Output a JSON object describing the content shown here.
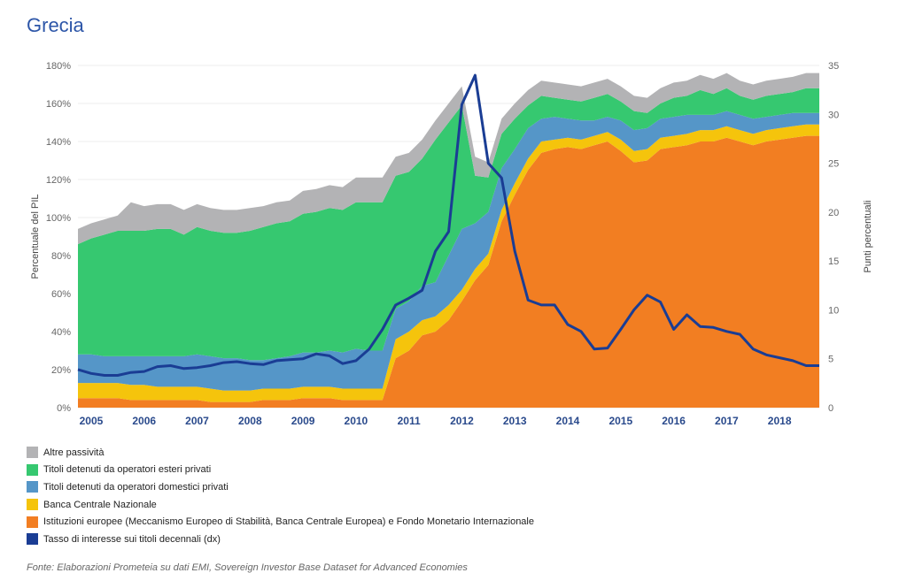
{
  "page": {
    "title": "Grecia",
    "footer": "Fonte: Elaborazioni Prometeia su dati EMI, Sovereign Investor Base Dataset for Advanced Economies"
  },
  "chart_data": {
    "type": "area",
    "title": "Grecia",
    "ylabel_left": "Percentuale del PIL",
    "ylabel_right": "Punti percentuali",
    "ylim_left": [
      0,
      180
    ],
    "ylim_right": [
      0,
      35
    ],
    "yticks_left": [
      "0%",
      "20%",
      "40%",
      "60%",
      "80%",
      "100%",
      "120%",
      "140%",
      "160%",
      "180%"
    ],
    "yticks_right": [
      "0",
      "5",
      "10",
      "15",
      "20",
      "25",
      "30",
      "35"
    ],
    "x_ticks": [
      "2005",
      "2006",
      "2007",
      "2008",
      "2009",
      "2010",
      "2011",
      "2012",
      "2013",
      "2014",
      "2015",
      "2016",
      "2017",
      "2018"
    ],
    "xlim": [
      2004.75,
      2018.75
    ],
    "stack_order": [
      "Istituzioni europee (Meccanismo Europeo di Stabilità, Banca Centrale Europea) e Fondo Monetario Internazionale",
      "Banca Centrale Nazionale",
      "Titoli detenuti da operatori domestici privati",
      "Titoli detenuti da operatori esteri privati",
      "Altre passività"
    ],
    "x": [
      2004.75,
      2005,
      2005.25,
      2005.5,
      2005.75,
      2006,
      2006.25,
      2006.5,
      2006.75,
      2007,
      2007.25,
      2007.5,
      2007.75,
      2008,
      2008.25,
      2008.5,
      2008.75,
      2009,
      2009.25,
      2009.5,
      2009.75,
      2010,
      2010.25,
      2010.5,
      2010.75,
      2011,
      2011.25,
      2011.5,
      2011.75,
      2012,
      2012.25,
      2012.5,
      2012.75,
      2013,
      2013.25,
      2013.5,
      2013.75,
      2014,
      2014.25,
      2014.5,
      2014.75,
      2015,
      2015.25,
      2015.5,
      2015.75,
      2016,
      2016.25,
      2016.5,
      2016.75,
      2017,
      2017.25,
      2017.5,
      2017.75,
      2018,
      2018.25,
      2018.5,
      2018.75
    ],
    "series": [
      {
        "name": "Altre passività",
        "color": "#b3b3b5",
        "values": [
          8,
          8,
          8,
          8,
          15,
          13,
          13,
          13,
          13,
          12,
          12,
          12,
          12,
          12,
          11,
          11,
          11,
          12,
          12,
          12,
          12,
          13,
          13,
          13,
          10,
          10,
          10,
          10,
          10,
          10,
          10,
          8,
          8,
          8,
          8,
          8,
          8,
          8,
          8,
          8,
          8,
          8,
          8,
          8,
          8,
          8,
          8,
          8,
          8,
          8,
          8,
          8,
          8,
          8,
          8,
          8,
          8
        ]
      },
      {
        "name": "Titoli detenuti da operatori esteri privati",
        "color": "#36c870",
        "values": [
          58,
          61,
          64,
          66,
          66,
          66,
          67,
          67,
          64,
          67,
          66,
          66,
          66,
          68,
          70,
          71,
          71,
          73,
          74,
          75,
          75,
          77,
          78,
          78,
          70,
          68,
          67,
          75,
          70,
          65,
          25,
          18,
          18,
          16,
          12,
          12,
          10,
          10,
          10,
          12,
          12,
          10,
          10,
          8,
          8,
          10,
          10,
          13,
          11,
          12,
          10,
          10,
          11,
          11,
          11,
          13,
          13
        ]
      },
      {
        "name": "Titoli detenuti da operatori domestici privati",
        "color": "#5596c8",
        "values": [
          15,
          15,
          14,
          14,
          15,
          15,
          16,
          16,
          16,
          17,
          17,
          17,
          17,
          16,
          15,
          16,
          17,
          18,
          18,
          19,
          19,
          21,
          20,
          20,
          16,
          16,
          18,
          18,
          26,
          32,
          24,
          22,
          22,
          18,
          16,
          12,
          12,
          10,
          10,
          8,
          8,
          10,
          11,
          11,
          10,
          10,
          10,
          8,
          8,
          8,
          8,
          8,
          7,
          7,
          7,
          6,
          6
        ]
      },
      {
        "name": "Banca Centrale Nazionale",
        "color": "#f5c40c",
        "values": [
          8,
          8,
          8,
          8,
          8,
          8,
          7,
          7,
          7,
          7,
          7,
          6,
          6,
          6,
          6,
          6,
          6,
          6,
          6,
          6,
          6,
          6,
          6,
          6,
          10,
          10,
          8,
          8,
          8,
          6,
          6,
          6,
          6,
          6,
          6,
          6,
          5,
          5,
          5,
          5,
          5,
          6,
          6,
          6,
          6,
          6,
          6,
          6,
          6,
          6,
          6,
          6,
          6,
          6,
          6,
          6,
          6
        ]
      },
      {
        "name": "Istituzioni europee (Meccanismo Europeo di Stabilità, Banca Centrale Europea) e Fondo Monetario Internazionale",
        "color": "#f27e22",
        "values": [
          5,
          5,
          5,
          5,
          4,
          4,
          4,
          4,
          4,
          4,
          3,
          3,
          3,
          3,
          4,
          4,
          4,
          5,
          5,
          5,
          4,
          4,
          4,
          4,
          26,
          30,
          38,
          40,
          46,
          56,
          67,
          75,
          98,
          112,
          125,
          134,
          136,
          137,
          136,
          138,
          140,
          135,
          129,
          130,
          136,
          137,
          138,
          140,
          140,
          142,
          140,
          138,
          140,
          141,
          142,
          143,
          143
        ]
      },
      {
        "name": "Tasso di interesse sui titoli decennali (dx)",
        "color": "#1a3d94",
        "axis": "right",
        "values": [
          3.9,
          3.5,
          3.3,
          3.3,
          3.6,
          3.7,
          4.2,
          4.3,
          4.0,
          4.1,
          4.3,
          4.6,
          4.7,
          4.5,
          4.4,
          4.8,
          4.9,
          5.0,
          5.5,
          5.3,
          4.5,
          4.8,
          6.0,
          8.0,
          10.5,
          11.2,
          12.0,
          16.0,
          18.0,
          31.0,
          34.0,
          25.0,
          23.5,
          16.0,
          11.0,
          10.5,
          10.5,
          8.5,
          7.8,
          6.0,
          6.1,
          8.0,
          10.0,
          11.5,
          10.8,
          8.0,
          9.5,
          8.3,
          8.2,
          7.8,
          7.5,
          6.0,
          5.4,
          5.1,
          4.8,
          4.3,
          4.3
        ]
      }
    ]
  }
}
